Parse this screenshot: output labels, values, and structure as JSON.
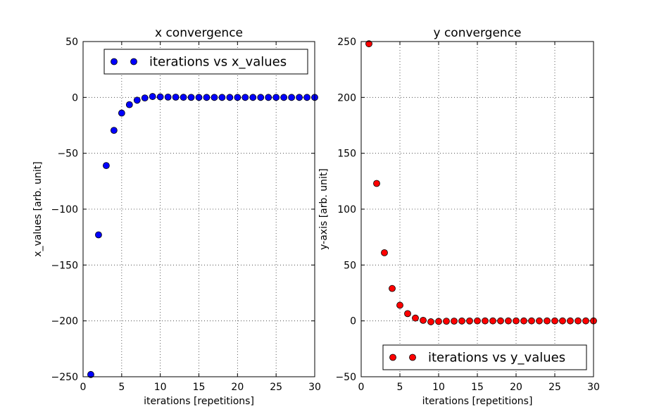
{
  "chart_data": [
    {
      "type": "scatter",
      "title": "x convergence",
      "xlabel": "iterations [repetitions]",
      "ylabel": "x_values [arb. unit]",
      "xlim": [
        0,
        30
      ],
      "ylim": [
        -250,
        50
      ],
      "xticks": [
        0,
        5,
        10,
        15,
        20,
        25,
        30
      ],
      "yticks": [
        -250,
        -200,
        -150,
        -100,
        -50,
        0,
        50
      ],
      "x_tick_labels": [
        "0",
        "5",
        "10",
        "15",
        "20",
        "25",
        "30"
      ],
      "y_tick_labels": [
        "−250",
        "−200",
        "−150",
        "−100",
        "−50",
        "0",
        "50"
      ],
      "grid": true,
      "legend_position": "top-right",
      "series": [
        {
          "name": "iterations vs x_values",
          "color": "#0000ff",
          "marker": "circle",
          "x": [
            1,
            2,
            3,
            4,
            5,
            6,
            7,
            8,
            9,
            10,
            11,
            12,
            13,
            14,
            15,
            16,
            17,
            18,
            19,
            20,
            21,
            22,
            23,
            24,
            25,
            26,
            27,
            28,
            29,
            30
          ],
          "values": [
            -248,
            -123,
            -61,
            -29.5,
            -14,
            -6.5,
            -2.5,
            -0.5,
            0.8,
            0.5,
            0.3,
            0.2,
            0.1,
            0.05,
            0,
            0,
            0,
            0,
            0,
            0,
            0,
            0,
            0,
            0,
            0,
            0,
            0,
            0,
            0,
            0
          ]
        }
      ]
    },
    {
      "type": "scatter",
      "title": "y convergence",
      "xlabel": "iterations [repetitions]",
      "ylabel": "y-axis [arb. unit]",
      "xlim": [
        0,
        30
      ],
      "ylim": [
        -50,
        250
      ],
      "xticks": [
        0,
        5,
        10,
        15,
        20,
        25,
        30
      ],
      "yticks": [
        -50,
        0,
        50,
        100,
        150,
        200,
        250
      ],
      "x_tick_labels": [
        "0",
        "5",
        "10",
        "15",
        "20",
        "25",
        "30"
      ],
      "y_tick_labels": [
        "−50",
        "0",
        "50",
        "100",
        "150",
        "200",
        "250"
      ],
      "grid": true,
      "legend_position": "bottom-right",
      "series": [
        {
          "name": "iterations vs y_values",
          "color": "#ff0000",
          "marker": "circle",
          "x": [
            1,
            2,
            3,
            4,
            5,
            6,
            7,
            8,
            9,
            10,
            11,
            12,
            13,
            14,
            15,
            16,
            17,
            18,
            19,
            20,
            21,
            22,
            23,
            24,
            25,
            26,
            27,
            28,
            29,
            30
          ],
          "values": [
            248,
            123,
            61,
            29,
            14,
            6.5,
            2.5,
            0.5,
            -0.8,
            -0.5,
            -0.3,
            -0.2,
            -0.1,
            -0.05,
            0,
            0,
            0,
            0,
            0,
            0,
            0,
            0,
            0,
            0,
            0,
            0,
            0,
            0,
            0,
            0
          ]
        }
      ]
    }
  ]
}
